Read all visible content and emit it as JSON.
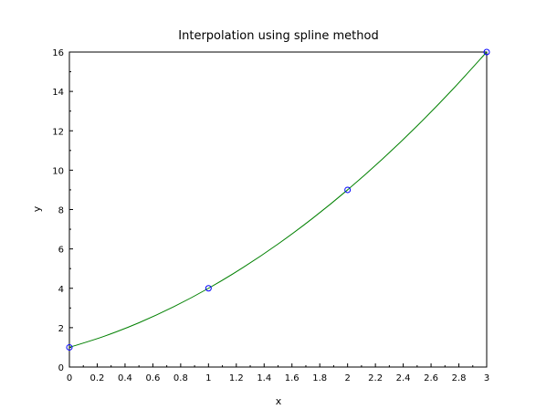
{
  "chart_data": {
    "type": "line",
    "title": "Interpolation using spline method",
    "xlabel": "x",
    "ylabel": "y",
    "xlim": [
      0,
      3
    ],
    "ylim": [
      0,
      16
    ],
    "x_ticks": [
      "0",
      "0.2",
      "0.4",
      "0.6",
      "0.8",
      "1",
      "1.2",
      "1.4",
      "1.6",
      "1.8",
      "2",
      "2.2",
      "2.4",
      "2.6",
      "2.8",
      "3"
    ],
    "y_ticks": [
      "0",
      "2",
      "4",
      "6",
      "8",
      "10",
      "12",
      "14",
      "16"
    ],
    "grid": false,
    "series": [
      {
        "kind": "markers",
        "marker": "circle",
        "color": "#0000ff",
        "x": [
          0,
          1,
          2,
          3
        ],
        "y": [
          1,
          4,
          9,
          16
        ]
      },
      {
        "kind": "line",
        "color": "#008000",
        "x": [
          0,
          0.25,
          0.5,
          0.75,
          1,
          1.25,
          1.5,
          1.75,
          2,
          2.25,
          2.5,
          2.75,
          3
        ],
        "y": [
          1,
          1.5625,
          2.25,
          3.0625,
          4,
          5.0625,
          6.25,
          7.5625,
          9,
          10.5625,
          12.25,
          14.0625,
          16
        ]
      }
    ]
  }
}
